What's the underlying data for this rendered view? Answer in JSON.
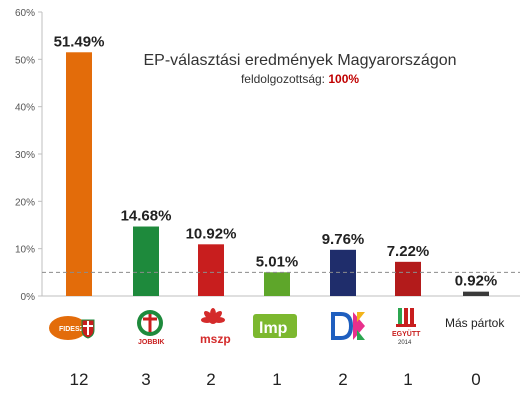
{
  "chart_data": {
    "type": "bar",
    "title": "EP-választási eredmények Magyarországon",
    "subtitle_label": "feldolgozottság:",
    "subtitle_value": "100%",
    "categories": [
      "Fidesz-KDNP",
      "Jobbik",
      "MSZP",
      "LMP",
      "DK",
      "Együtt 2014",
      "Más pártok"
    ],
    "values": [
      51.49,
      14.68,
      10.92,
      5.01,
      9.76,
      7.22,
      0.92
    ],
    "value_labels": [
      "51.49%",
      "14.68%",
      "10.92%",
      "5.01%",
      "9.76%",
      "7.22%",
      "0.92%"
    ],
    "colors": [
      "#e36c0a",
      "#1e8a3c",
      "#c81e1e",
      "#5ea62a",
      "#1f2d6b",
      "#b31b1b",
      "#3a3a3a"
    ],
    "yticks": [
      "0%",
      "10%",
      "20%",
      "30%",
      "40%",
      "50%",
      "60%"
    ],
    "ylim": [
      0,
      60
    ],
    "threshold": 5,
    "grid": false,
    "seats": [
      "12",
      "3",
      "2",
      "1",
      "2",
      "1",
      "0"
    ]
  },
  "logos": {
    "fidesz": "FIDESZ",
    "jobbik": "JOBBIK",
    "mszp": "mszp",
    "lmp": "lmp",
    "egyutt_name": "EGYÜTT",
    "egyutt_year": "2014",
    "other": "Más pártok"
  }
}
